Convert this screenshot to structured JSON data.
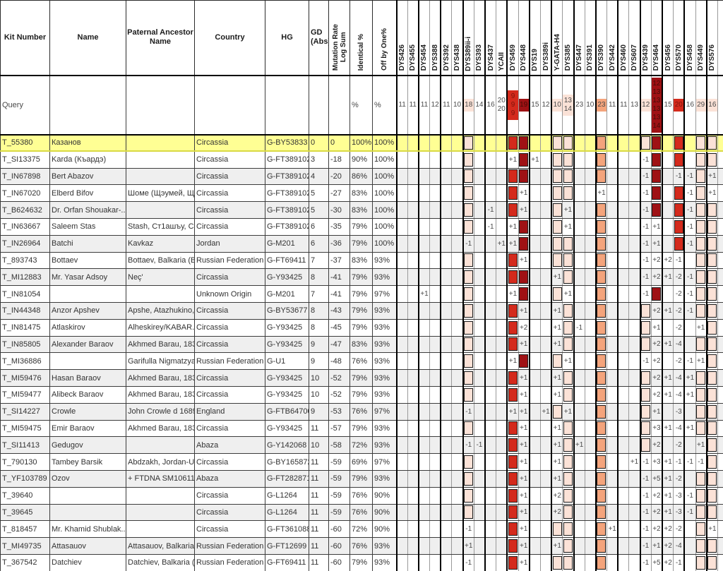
{
  "colors": {
    "pink": "#fbe2d7",
    "salmon": "#f4a47c",
    "red": "#d42a1c",
    "darkred": "#9f1114",
    "highlight": "#ffff94",
    "stripe": "#efefef"
  },
  "layout": {
    "left_widths": {
      "kit": 70,
      "name": 108,
      "ancestor": 97,
      "country": 100,
      "hg": 62,
      "gd": 28,
      "mut": 30,
      "ident": 32,
      "offby": 34
    },
    "marker_width": 15.7,
    "sliver_width": 7.7
  },
  "header": {
    "kit": "Kit Number",
    "name": "Name",
    "ancestor": "Paternal Ancestor\nName",
    "country": "Country",
    "hg": "HG",
    "gd": "GD\n(Abs)",
    "mut": "Mutation Rate\nLog Sum",
    "ident": "Identical %",
    "offby": "Off by One%"
  },
  "markers": [
    "DYS426",
    "DYS455",
    "DYS454",
    "DYS388",
    "DYS392",
    "DYS438",
    "DYS389ii-i",
    "DYS393",
    "DYS437",
    "YCAII",
    "DYS459",
    "DYS448",
    "DYS19",
    "DYS389i",
    "Y-GATA-H4",
    "DYS385",
    "DYS447",
    "DYS391",
    "DYS390",
    "DYS442",
    "DYS460",
    "DYS607",
    "DYS439",
    "DYS464",
    "DYS456",
    "DYS570",
    "DYS458",
    "DYS449",
    "DYS576"
  ],
  "query": {
    "kit": "Query",
    "ident": "%",
    "offby": "%",
    "values": {
      "DYS426": {
        "v": [
          "11"
        ]
      },
      "DYS455": {
        "v": [
          "11"
        ]
      },
      "DYS454": {
        "v": [
          "11"
        ]
      },
      "DYS388": {
        "v": [
          "12"
        ]
      },
      "DYS392": {
        "v": [
          "11"
        ]
      },
      "DYS438": {
        "v": [
          "10"
        ]
      },
      "DYS389ii-i": {
        "v": [
          "18"
        ],
        "bg": "pink"
      },
      "DYS393": {
        "v": [
          "14"
        ]
      },
      "DYS437": {
        "v": [
          "16"
        ]
      },
      "YCAII": {
        "v": [
          "20",
          "20"
        ]
      },
      "DYS459": {
        "v": [
          "9",
          "9",
          "9"
        ],
        "bg": "red"
      },
      "DYS448": {
        "v": [
          "19"
        ],
        "bg": "darkred"
      },
      "DYS19": {
        "v": [
          "15"
        ]
      },
      "DYS389i": {
        "v": [
          "12"
        ]
      },
      "Y-GATA-H4": {
        "v": [
          "10"
        ],
        "bg": "pink"
      },
      "DYS385": {
        "v": [
          "13",
          "14"
        ],
        "bg": "pink"
      },
      "DYS447": {
        "v": [
          "23"
        ]
      },
      "DYS391": {
        "v": [
          "10"
        ]
      },
      "DYS390": {
        "v": [
          "23"
        ],
        "bg": "salmon"
      },
      "DYS442": {
        "v": [
          "11"
        ]
      },
      "DYS460": {
        "v": [
          "11"
        ]
      },
      "DYS607": {
        "v": [
          "13"
        ]
      },
      "DYS439": {
        "v": [
          "12"
        ],
        "bg": "pink"
      },
      "DYS464": {
        "v": [
          "12",
          "13",
          "13",
          "13",
          "13",
          "14"
        ],
        "bg": "darkred"
      },
      "DYS456": {
        "v": [
          "15"
        ]
      },
      "DYS570": {
        "v": [
          "20"
        ],
        "bg": "red"
      },
      "DYS458": {
        "v": [
          "16"
        ]
      },
      "DYS449": {
        "v": [
          "29"
        ],
        "bg": "pink"
      },
      "DYS576": {
        "v": [
          "16"
        ],
        "bg": "pink"
      }
    }
  },
  "rows": [
    {
      "kit": "T_55380",
      "name": "Казанов",
      "ancestor": "",
      "country": "Circassia",
      "hg": "G-BY53833",
      "gd": "0",
      "mut": "0",
      "ident": "100%",
      "offby": "100%",
      "highlight": true,
      "m": {
        "DYS389ii-i": "P",
        "DYS459": "R",
        "DYS448": "D",
        "Y-GATA-H4": "P",
        "DYS385": "P",
        "DYS390": "S",
        "DYS439": "P",
        "DYS464": "D",
        "DYS570": "R",
        "DYS449": "P",
        "DYS576": "P"
      }
    },
    {
      "kit": "T_SI13375",
      "name": "Karda (Къардэ)",
      "ancestor": "",
      "country": "Circassia",
      "hg": "G-FT389102",
      "gd": "3",
      "mut": "-18",
      "ident": "90%",
      "offby": "100%",
      "m": {
        "DYS389ii-i": "P",
        "DYS459": "+1",
        "DYS448": "D",
        "DYS19": "+1",
        "Y-GATA-H4": "P",
        "DYS385": "P",
        "DYS390": "S",
        "DYS439": "-1",
        "DYS464": "D",
        "DYS570": "R",
        "DYS449": "P",
        "DYS576": "P"
      }
    },
    {
      "kit": "T_IN67898",
      "name": "Bert Abazov",
      "ancestor": "",
      "country": "Circassia",
      "hg": "G-FT389102",
      "gd": "4",
      "mut": "-20",
      "ident": "86%",
      "offby": "100%",
      "m": {
        "DYS389ii-i": "P",
        "DYS459": "R",
        "DYS448": "D",
        "Y-GATA-H4": "P",
        "DYS385": "P",
        "DYS390": "S",
        "DYS439": "-1",
        "DYS464": "D",
        "DYS570": "-1",
        "DYS458": "-1",
        "DYS449": "P",
        "DYS576": "+1"
      }
    },
    {
      "kit": "T_IN67020",
      "name": "Elberd Bifov",
      "ancestor": "Шоме (Щэумей, Щ...",
      "country": "Circassia",
      "hg": "G-FT389102",
      "gd": "5",
      "mut": "-27",
      "ident": "83%",
      "offby": "100%",
      "m": {
        "DYS389ii-i": "P",
        "DYS459": "R",
        "DYS448": "+1",
        "Y-GATA-H4": "P",
        "DYS385": "P",
        "DYS390": "+1",
        "DYS439": "-1",
        "DYS464": "D",
        "DYS570": "R",
        "DYS458": "-1",
        "DYS449": "P",
        "DYS576": "+1"
      }
    },
    {
      "kit": "T_B624632",
      "name": "Dr. Orfan Shouakar-...",
      "ancestor": "",
      "country": "Circassia",
      "hg": "G-FT389102",
      "gd": "5",
      "mut": "-30",
      "ident": "83%",
      "offby": "100%",
      "m": {
        "DYS389ii-i": "P",
        "DYS437": "-1",
        "DYS459": "R",
        "DYS448": "+1",
        "Y-GATA-H4": "P",
        "DYS385": "+1",
        "DYS390": "S",
        "DYS439": "-1",
        "DYS464": "D",
        "DYS570": "R",
        "DYS458": "-1",
        "DYS449": "P",
        "DYS576": "P"
      }
    },
    {
      "kit": "T_IN63667",
      "name": "Saleem Stas",
      "ancestor": "Stash, Ст1ашъу, Ci...",
      "country": "Circassia",
      "hg": "G-FT389102",
      "gd": "6",
      "mut": "-35",
      "ident": "79%",
      "offby": "100%",
      "m": {
        "DYS389ii-i": "P",
        "DYS437": "-1",
        "DYS459": "+1",
        "DYS448": "D",
        "Y-GATA-H4": "P",
        "DYS385": "+1",
        "DYS390": "S",
        "DYS439": "-1",
        "DYS464": "+1",
        "DYS570": "R",
        "DYS458": "-1",
        "DYS449": "P",
        "DYS576": "P"
      }
    },
    {
      "kit": "T_IN26964",
      "name": "Batchi",
      "ancestor": "Kavkaz",
      "country": "Jordan",
      "hg": "G-M201",
      "gd": "6",
      "mut": "-36",
      "ident": "79%",
      "offby": "100%",
      "m": {
        "DYS389ii-i": "-1",
        "YCAII": "+1",
        "DYS459": "+1",
        "DYS448": "D",
        "Y-GATA-H4": "P",
        "DYS385": "P",
        "DYS390": "S",
        "DYS439": "-1",
        "DYS464": "+1",
        "DYS570": "R",
        "DYS458": "-1",
        "DYS449": "P",
        "DYS576": "P"
      }
    },
    {
      "kit": "T_893743",
      "name": "Bottaev",
      "ancestor": "Bottaev, Balkaria (B...",
      "country": "Russian Federation",
      "hg": "G-FT69411",
      "gd": "7",
      "mut": "-37",
      "ident": "83%",
      "offby": "93%",
      "m": {
        "DYS389ii-i": "P",
        "DYS459": "R",
        "DYS448": "+1",
        "Y-GATA-H4": "P",
        "DYS385": "P",
        "DYS390": "S",
        "DYS439": "-1",
        "DYS464": "+2",
        "DYS456": "+2",
        "DYS570": "-1",
        "DYS449": "P",
        "DYS576": "P"
      }
    },
    {
      "kit": "T_MI12883",
      "name": "Mr. Yasar Adsoy",
      "ancestor": "Neç'",
      "country": "Circassia",
      "hg": "G-Y93425",
      "gd": "8",
      "mut": "-41",
      "ident": "79%",
      "offby": "93%",
      "m": {
        "DYS389ii-i": "P",
        "DYS459": "R",
        "DYS448": "D",
        "Y-GATA-H4": "+1",
        "DYS385": "P",
        "DYS390": "S",
        "DYS439": "-1",
        "DYS464": "+2",
        "DYS456": "+1",
        "DYS570": "-2",
        "DYS458": "-1",
        "DYS449": "P",
        "DYS576": "P"
      }
    },
    {
      "kit": "T_IN81054",
      "name": "",
      "ancestor": "",
      "country": "Unknown Origin",
      "hg": "G-M201",
      "gd": "7",
      "mut": "-41",
      "ident": "79%",
      "offby": "97%",
      "m": {
        "DYS454": "+1",
        "DYS389ii-i": "P",
        "DYS459": "+1",
        "DYS448": "D",
        "Y-GATA-H4": "P",
        "DYS385": "+1",
        "DYS390": "S",
        "DYS439": "-1",
        "DYS464": "D",
        "DYS570": "-2",
        "DYS458": "-1",
        "DYS449": "P",
        "DYS576": "P"
      }
    },
    {
      "kit": "T_IN44348",
      "name": "Anzor Apshev",
      "ancestor": "Apshe, Atazhukino, ...",
      "country": "Circassia",
      "hg": "G-BY53677",
      "gd": "8",
      "mut": "-43",
      "ident": "79%",
      "offby": "93%",
      "m": {
        "DYS389ii-i": "P",
        "DYS459": "R",
        "DYS448": "+1",
        "Y-GATA-H4": "+1",
        "DYS385": "P",
        "DYS390": "S",
        "DYS439": "P",
        "DYS464": "+2",
        "DYS456": "+1",
        "DYS570": "-2",
        "DYS458": "-1",
        "DYS449": "P",
        "DYS576": "P"
      }
    },
    {
      "kit": "T_IN81475",
      "name": "Atlaskirov",
      "ancestor": "Alheskirey/KABAR...",
      "country": "Circassia",
      "hg": "G-Y93425",
      "gd": "8",
      "mut": "-45",
      "ident": "79%",
      "offby": "93%",
      "m": {
        "DYS389ii-i": "P",
        "DYS459": "R",
        "DYS448": "+2",
        "Y-GATA-H4": "+1",
        "DYS385": "P",
        "DYS447": "-1",
        "DYS390": "S",
        "DYS439": "P",
        "DYS464": "+1",
        "DYS570": "-2",
        "DYS449": "+1",
        "DYS576": "P"
      }
    },
    {
      "kit": "T_IN85805",
      "name": "Alexander Baraov",
      "ancestor": "Akhmed Barau, 183...",
      "country": "Circassia",
      "hg": "G-Y93425",
      "gd": "9",
      "mut": "-47",
      "ident": "83%",
      "offby": "93%",
      "m": {
        "DYS389ii-i": "P",
        "DYS459": "R",
        "DYS448": "+1",
        "Y-GATA-H4": "+1",
        "DYS385": "P",
        "DYS390": "S",
        "DYS439": "P",
        "DYS464": "+2",
        "DYS456": "+1",
        "DYS570": "-4",
        "DYS449": "P",
        "DYS576": "P"
      }
    },
    {
      "kit": "T_MI36886",
      "name": "",
      "ancestor": "Garifulla Nigmatzya...",
      "country": "Russian Federation",
      "hg": "G-U1",
      "gd": "9",
      "mut": "-48",
      "ident": "76%",
      "offby": "93%",
      "m": {
        "DYS389ii-i": "P",
        "DYS459": "+1",
        "DYS448": "D",
        "Y-GATA-H4": "P",
        "DYS385": "+1",
        "DYS390": "S",
        "DYS439": "-1",
        "DYS464": "+2",
        "DYS570": "-2",
        "DYS458": "-1",
        "DYS449": "+1",
        "DYS576": "P"
      }
    },
    {
      "kit": "T_MI59476",
      "name": "Hasan Baraov",
      "ancestor": "Akhmed Barau, 183...",
      "country": "Circassia",
      "hg": "G-Y93425",
      "gd": "10",
      "mut": "-52",
      "ident": "79%",
      "offby": "93%",
      "m": {
        "DYS389ii-i": "P",
        "DYS459": "R",
        "DYS448": "+1",
        "Y-GATA-H4": "+1",
        "DYS385": "P",
        "DYS390": "S",
        "DYS439": "P",
        "DYS464": "+2",
        "DYS456": "+1",
        "DYS570": "-4",
        "DYS458": "+1",
        "DYS449": "P",
        "DYS576": "P"
      }
    },
    {
      "kit": "T_MI59477",
      "name": "Alibeck Baraov",
      "ancestor": "Akhmed Barau, 183...",
      "country": "Circassia",
      "hg": "G-Y93425",
      "gd": "10",
      "mut": "-52",
      "ident": "79%",
      "offby": "93%",
      "m": {
        "DYS389ii-i": "P",
        "DYS459": "R",
        "DYS448": "+1",
        "Y-GATA-H4": "+1",
        "DYS385": "P",
        "DYS390": "S",
        "DYS439": "P",
        "DYS464": "+2",
        "DYS456": "+1",
        "DYS570": "-4",
        "DYS458": "+1",
        "DYS449": "P",
        "DYS576": "P"
      }
    },
    {
      "kit": "T_SI14227",
      "name": "Crowle",
      "ancestor": "John Crowle d 1689",
      "country": "England",
      "hg": "G-FTB64700",
      "gd": "9",
      "mut": "-53",
      "ident": "76%",
      "offby": "97%",
      "m": {
        "DYS389ii-i": "-1",
        "DYS459": "+1",
        "DYS448": "+1",
        "DYS389i": "+1",
        "Y-GATA-H4": "P",
        "DYS385": "+1",
        "DYS390": "S",
        "DYS439": "P",
        "DYS464": "+1",
        "DYS570": "-3",
        "DYS449": "P",
        "DYS576": "P"
      }
    },
    {
      "kit": "T_MI59475",
      "name": "Emir Baraov",
      "ancestor": "Akhmed Barau, 183...",
      "country": "Circassia",
      "hg": "G-Y93425",
      "gd": "11",
      "mut": "-57",
      "ident": "79%",
      "offby": "93%",
      "m": {
        "DYS389ii-i": "P",
        "DYS459": "R",
        "DYS448": "+1",
        "Y-GATA-H4": "+1",
        "DYS385": "P",
        "DYS390": "S",
        "DYS439": "P",
        "DYS464": "+3",
        "DYS456": "+1",
        "DYS570": "-4",
        "DYS458": "+1",
        "DYS449": "P",
        "DYS576": "P"
      }
    },
    {
      "kit": "T_SI11413",
      "name": "Gedugov",
      "ancestor": "",
      "country": "Abaza",
      "hg": "G-Y142068",
      "gd": "10",
      "mut": "-58",
      "ident": "72%",
      "offby": "93%",
      "m": {
        "DYS389ii-i": "-1",
        "DYS393": "-1",
        "DYS459": "R",
        "DYS448": "+1",
        "Y-GATA-H4": "+1",
        "DYS385": "P",
        "DYS447": "+1",
        "DYS390": "S",
        "DYS439": "P",
        "DYS464": "+2",
        "DYS570": "-2",
        "DYS449": "+1",
        "DYS576": "P"
      }
    },
    {
      "kit": "T_790130",
      "name": "Tambey Barsik",
      "ancestor": "Abdzakh, Jordan-USA",
      "country": "Circassia",
      "hg": "G-BY165872",
      "gd": "11",
      "mut": "-59",
      "ident": "69%",
      "offby": "97%",
      "m": {
        "DYS389ii-i": "P",
        "DYS459": "R",
        "DYS448": "+1",
        "Y-GATA-H4": "+1",
        "DYS385": "P",
        "DYS390": "S",
        "DYS607": "+1",
        "DYS439": "-1",
        "DYS464": "+3",
        "DYS456": "+1",
        "DYS570": "-1",
        "DYS458": "-1",
        "DYS449": "-1",
        "DYS576": "P"
      }
    },
    {
      "kit": "T_YF103789",
      "name": "Ozov",
      "ancestor": "+ FTDNA SM10611",
      "country": "Abaza",
      "hg": "G-FT282871",
      "gd": "11",
      "mut": "-59",
      "ident": "79%",
      "offby": "93%",
      "m": {
        "DYS389ii-i": "P",
        "DYS459": "R",
        "DYS448": "+1",
        "Y-GATA-H4": "+1",
        "DYS385": "P",
        "DYS390": "S",
        "DYS439": "-1",
        "DYS464": "+5",
        "DYS456": "+1",
        "DYS570": "-2",
        "DYS449": "P",
        "DYS576": "P"
      }
    },
    {
      "kit": "T_39640",
      "name": "",
      "ancestor": "",
      "country": "Circassia",
      "hg": "G-L1264",
      "gd": "11",
      "mut": "-59",
      "ident": "76%",
      "offby": "90%",
      "m": {
        "DYS389ii-i": "P",
        "DYS459": "R",
        "DYS448": "+1",
        "Y-GATA-H4": "+2",
        "DYS385": "P",
        "DYS390": "S",
        "DYS439": "-1",
        "DYS464": "+2",
        "DYS456": "+1",
        "DYS570": "-3",
        "DYS458": "-1",
        "DYS449": "P",
        "DYS576": "P"
      }
    },
    {
      "kit": "T_39645",
      "name": "",
      "ancestor": "",
      "country": "Circassia",
      "hg": "G-L1264",
      "gd": "11",
      "mut": "-59",
      "ident": "76%",
      "offby": "90%",
      "m": {
        "DYS389ii-i": "P",
        "DYS459": "R",
        "DYS448": "+1",
        "Y-GATA-H4": "+2",
        "DYS385": "P",
        "DYS390": "S",
        "DYS439": "-1",
        "DYS464": "+2",
        "DYS456": "+1",
        "DYS570": "-3",
        "DYS458": "-1",
        "DYS449": "P",
        "DYS576": "P"
      }
    },
    {
      "kit": "T_818457",
      "name": "Mr. Khamid Shublak...",
      "ancestor": "",
      "country": "Circassia",
      "hg": "G-FT361088",
      "gd": "11",
      "mut": "-60",
      "ident": "72%",
      "offby": "90%",
      "m": {
        "DYS389ii-i": "-1",
        "DYS459": "R",
        "DYS448": "+1",
        "Y-GATA-H4": "P",
        "DYS385": "P",
        "DYS390": "S",
        "DYS442": "+1",
        "DYS439": "-1",
        "DYS464": "+2",
        "DYS456": "+2",
        "DYS570": "-2",
        "DYS449": "P",
        "DYS576": "+1"
      }
    },
    {
      "kit": "T_MI49735",
      "name": "Attasauov",
      "ancestor": "Attasauov, Balkaria ...",
      "country": "Russian Federation",
      "hg": "G-FT12699",
      "gd": "11",
      "mut": "-60",
      "ident": "76%",
      "offby": "93%",
      "m": {
        "DYS389ii-i": "+1",
        "DYS459": "R",
        "DYS448": "+1",
        "Y-GATA-H4": "+1",
        "DYS385": "P",
        "DYS390": "S",
        "DYS439": "-1",
        "DYS464": "+1",
        "DYS456": "+2",
        "DYS570": "-4",
        "DYS449": "P",
        "DYS576": "P"
      }
    },
    {
      "kit": "T_367542",
      "name": "Datchiev",
      "ancestor": "Datchiev, Balkaria (...",
      "country": "Russian Federation",
      "hg": "G-FT69411",
      "gd": "11",
      "mut": "-60",
      "ident": "79%",
      "offby": "93%",
      "m": {
        "DYS389ii-i": "-1",
        "DYS459": "R",
        "DYS448": "+1",
        "Y-GATA-H4": "P",
        "DYS385": "P",
        "DYS390": "S",
        "DYS439": "-1",
        "DYS464": "+5",
        "DYS456": "+2",
        "DYS570": "-1",
        "DYS449": "P",
        "DYS576": "P"
      }
    }
  ]
}
